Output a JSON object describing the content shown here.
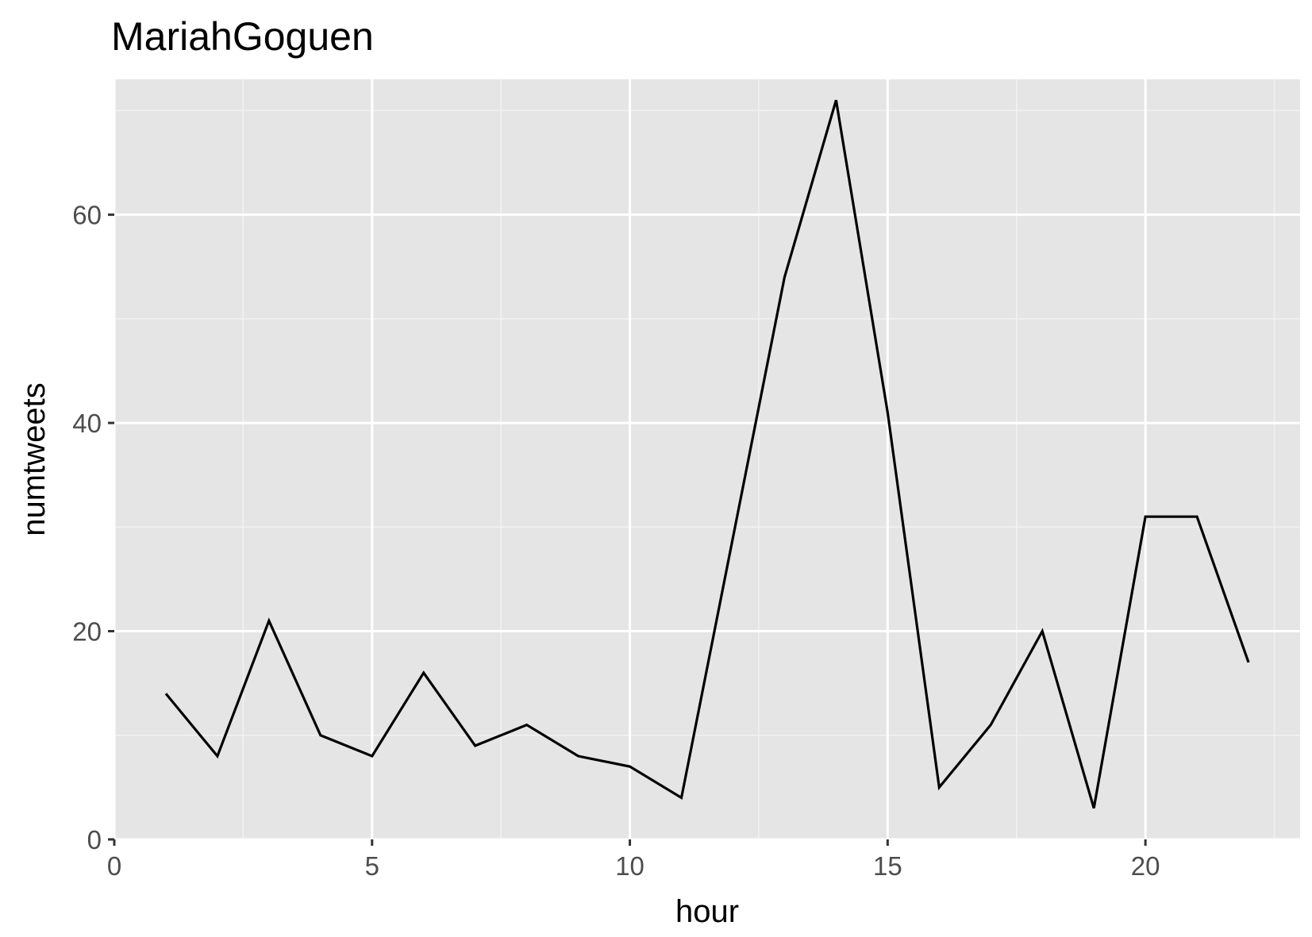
{
  "chart_data": {
    "type": "line",
    "title": "MariahGoguen",
    "xlabel": "hour",
    "ylabel": "numtweets",
    "xlim": [
      0,
      23
    ],
    "ylim": [
      0,
      73
    ],
    "x_ticks": [
      0,
      5,
      10,
      15,
      20
    ],
    "y_ticks": [
      0,
      20,
      40,
      60
    ],
    "x_tick_labels": [
      "0",
      "5",
      "10",
      "15",
      "20"
    ],
    "y_tick_labels": [
      "0",
      "20",
      "40",
      "60"
    ],
    "grid": true,
    "legend": "none",
    "series": [
      {
        "x": [
          1,
          2,
          3,
          4,
          5,
          6,
          7,
          8,
          9,
          10,
          11,
          12,
          13,
          14,
          15,
          16,
          17,
          18,
          19,
          20,
          21,
          22
        ],
        "y": [
          14,
          8,
          21,
          10,
          8,
          16,
          9,
          11,
          8,
          7,
          4,
          29,
          54,
          71,
          41,
          5,
          11,
          20,
          3,
          31,
          31,
          17
        ],
        "color": "#000000"
      }
    ],
    "colors": {
      "panel_background": "#e5e5e5",
      "grid_major": "#ffffff",
      "grid_minor": "#f2f2f2",
      "line": "#000000",
      "tick_text": "#4d4d4d",
      "tick_mark": "#333333"
    }
  }
}
